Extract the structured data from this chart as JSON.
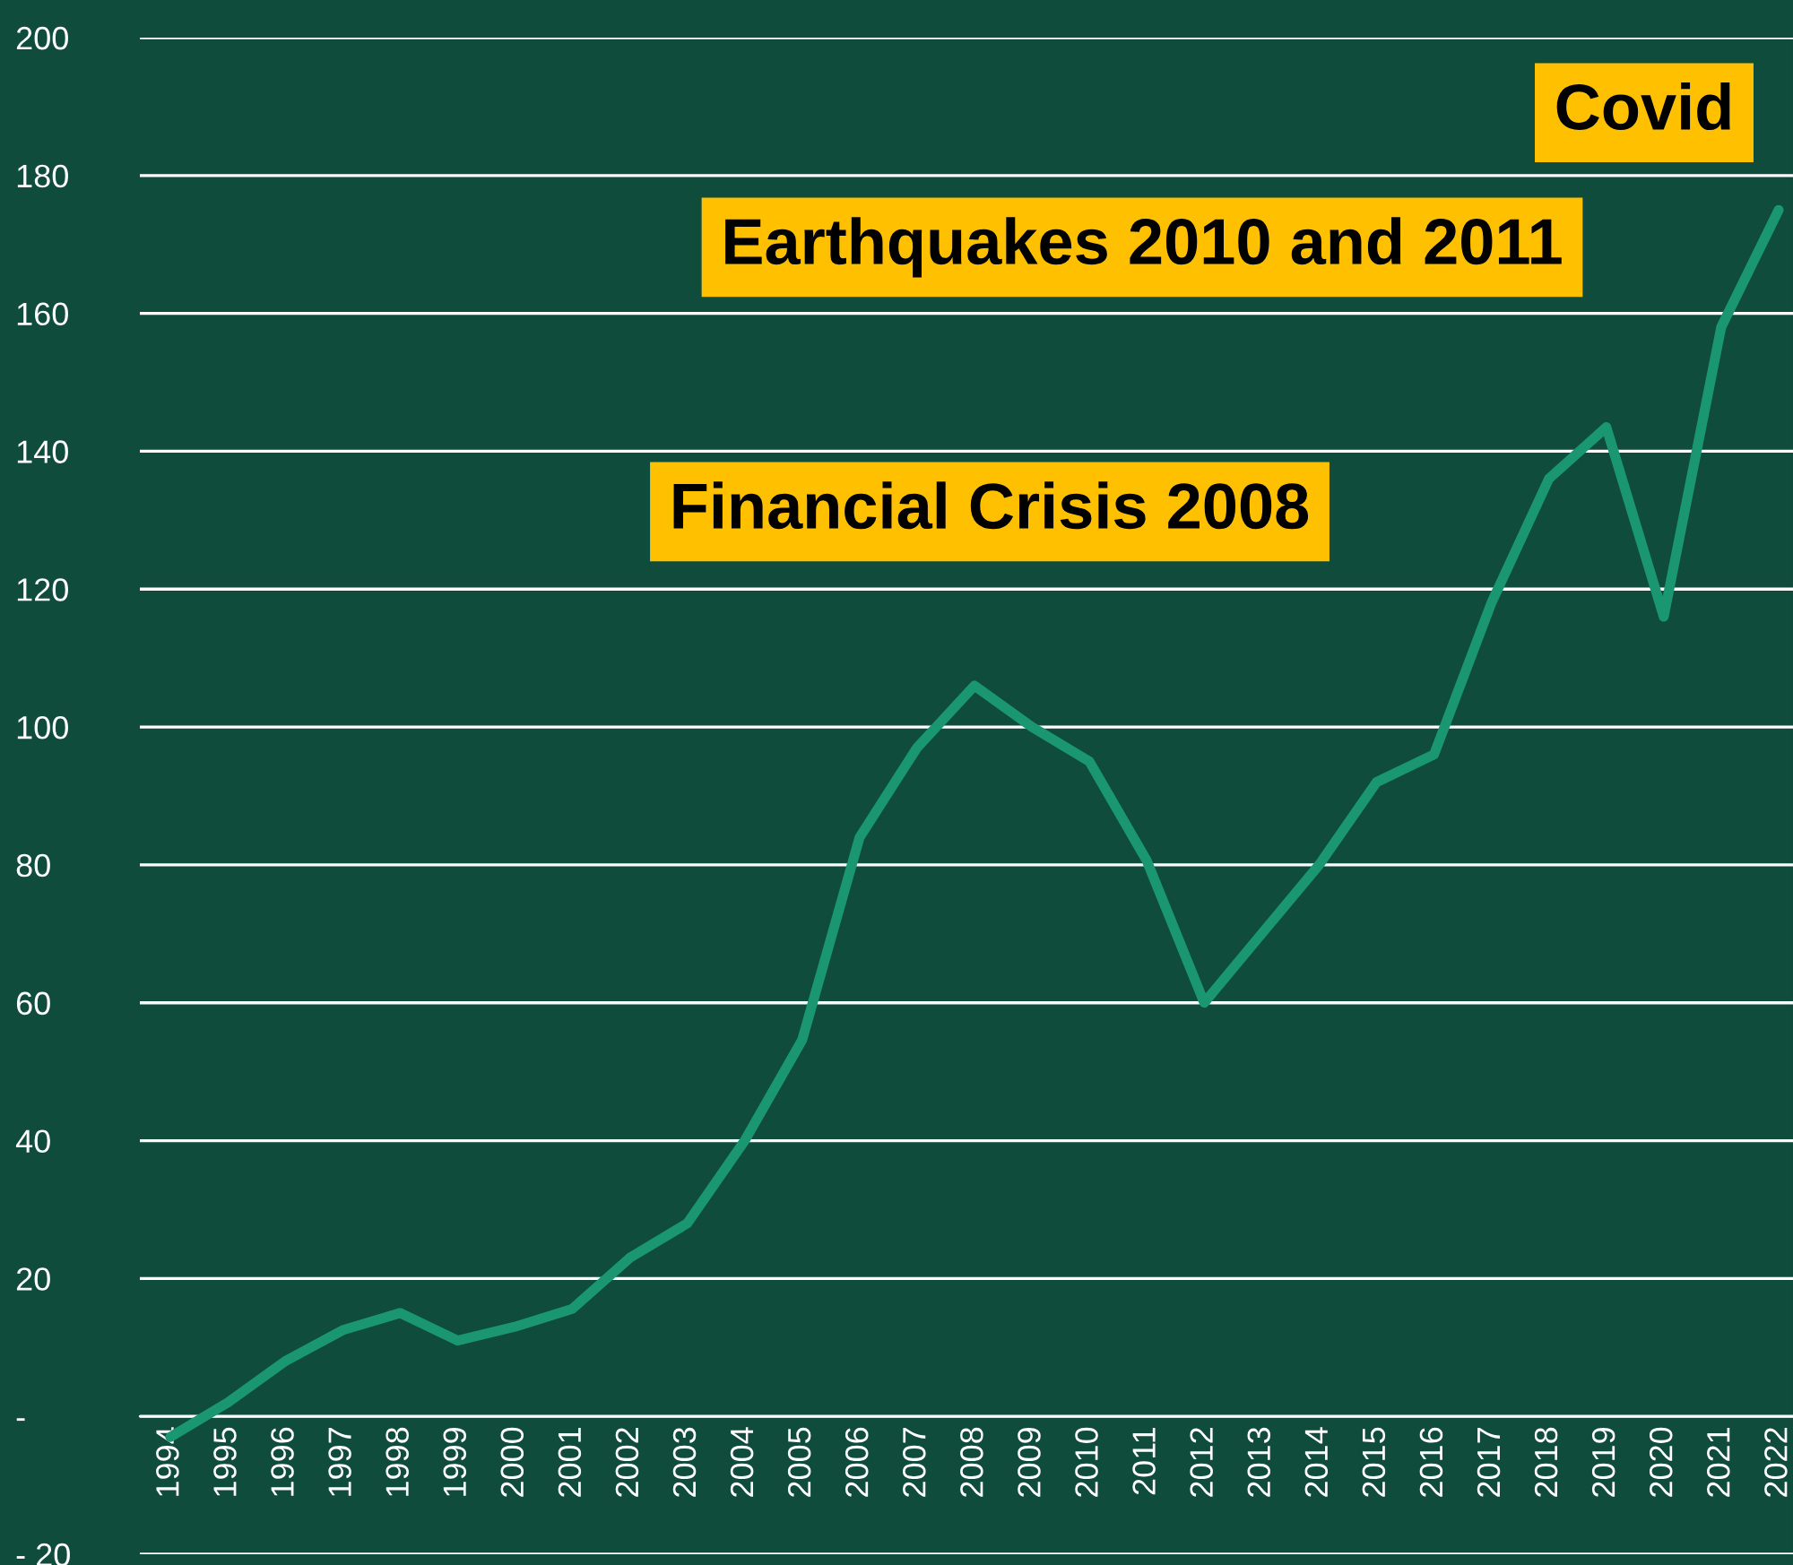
{
  "chart_data": {
    "type": "line",
    "categories": [
      "1994",
      "1995",
      "1996",
      "1997",
      "1998",
      "1999",
      "2000",
      "2001",
      "2002",
      "2003",
      "2004",
      "2005",
      "2006",
      "2007",
      "2008",
      "2009",
      "2010",
      "2011",
      "2012",
      "2013",
      "2014",
      "2015",
      "2016",
      "2017",
      "2018",
      "2019",
      "2020",
      "2021",
      "2022"
    ],
    "series": [
      {
        "color": "#1a9670",
        "values": [
          -3,
          2,
          8,
          12.5,
          15,
          11,
          13,
          15.6,
          23,
          28,
          40,
          54.6,
          84,
          97,
          106,
          100,
          95,
          80.6,
          60,
          70,
          80,
          92,
          96,
          118,
          136,
          143.5,
          116,
          158,
          175
        ]
      }
    ],
    "ylim": [
      -20,
      200
    ],
    "yticks": [
      {
        "value": -20,
        "label": "- 20"
      },
      {
        "value": 0,
        "label": "-"
      },
      20,
      40,
      60,
      80,
      100,
      120,
      140,
      160,
      180,
      200
    ],
    "grid": "y",
    "marker": "none",
    "line_style": "solid",
    "annotations": [
      "Financial Crisis 2008",
      "Earthquakes 2010 and 2011",
      "Covid"
    ]
  }
}
